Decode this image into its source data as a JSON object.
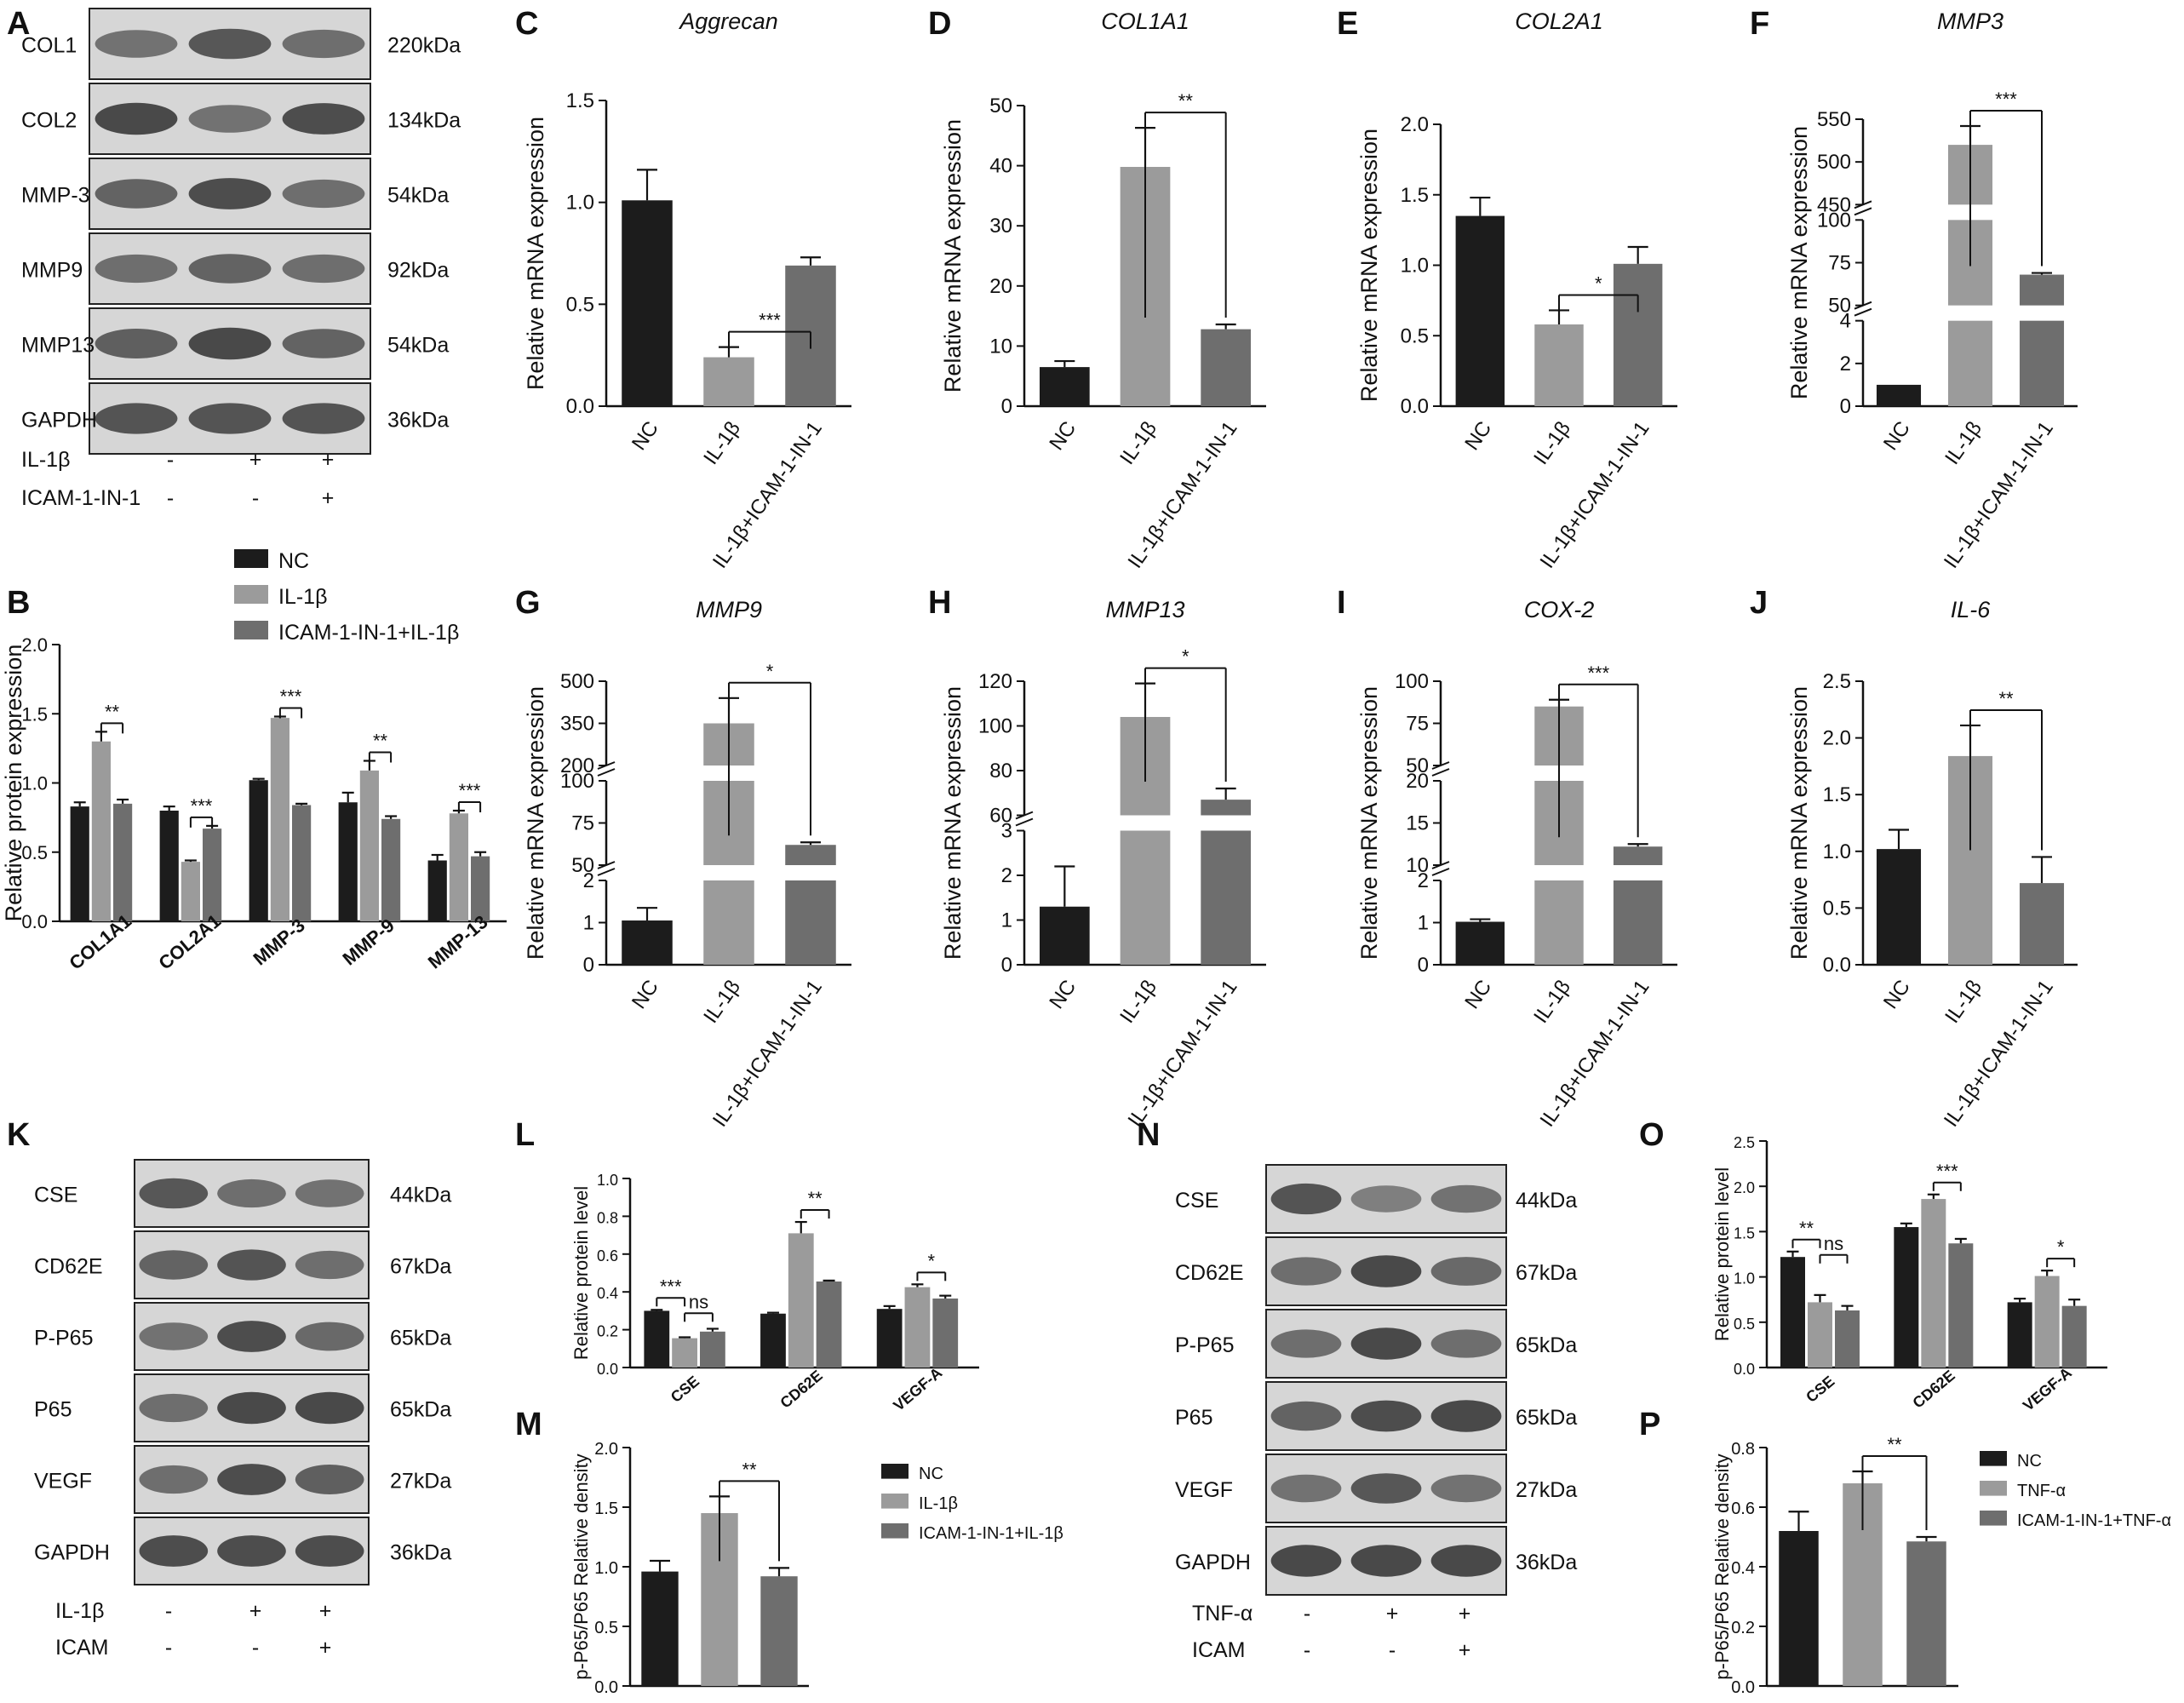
{
  "colors": {
    "nc": "#1c1c1c",
    "il": "#9b9b9b",
    "icam": "#6e6e6e",
    "blot_bg": "#d6d6d6",
    "band": "#3a3a3a"
  },
  "panel_letters": [
    "A",
    "B",
    "C",
    "D",
    "E",
    "F",
    "G",
    "H",
    "I",
    "J",
    "K",
    "L",
    "M",
    "N",
    "O",
    "P"
  ],
  "blots": [
    {
      "letter": "A",
      "rows": [
        {
          "name": "COL1",
          "kda": "220kDa",
          "intensity": [
            0.55,
            0.8,
            0.6
          ]
        },
        {
          "name": "COL2",
          "kda": "134kDa",
          "intensity": [
            0.95,
            0.55,
            0.9
          ]
        },
        {
          "name": "MMP-3",
          "kda": "54kDa",
          "intensity": [
            0.7,
            0.9,
            0.6
          ]
        },
        {
          "name": "MMP9",
          "kda": "92kDa",
          "intensity": [
            0.6,
            0.7,
            0.6
          ]
        },
        {
          "name": "MMP13",
          "kda": "54kDa",
          "intensity": [
            0.75,
            0.95,
            0.7
          ]
        },
        {
          "name": "GAPDH",
          "kda": "36kDa",
          "intensity": [
            0.85,
            0.85,
            0.85
          ]
        }
      ],
      "treatments": [
        {
          "label": "IL-1β",
          "marks": [
            "-",
            "+",
            "+"
          ]
        },
        {
          "label": "ICAM-1-IN-1",
          "marks": [
            "-",
            "-",
            "+"
          ]
        }
      ]
    },
    {
      "letter": "K",
      "rows": [
        {
          "name": "CSE",
          "kda": "44kDa",
          "intensity": [
            0.8,
            0.6,
            0.55
          ]
        },
        {
          "name": "CD62E",
          "kda": "67kDa",
          "intensity": [
            0.7,
            0.85,
            0.6
          ]
        },
        {
          "name": "P-P65",
          "kda": "65kDa",
          "intensity": [
            0.55,
            0.9,
            0.65
          ]
        },
        {
          "name": "P65",
          "kda": "65kDa",
          "intensity": [
            0.6,
            0.95,
            0.95
          ]
        },
        {
          "name": "VEGF",
          "kda": "27kDa",
          "intensity": [
            0.6,
            0.9,
            0.75
          ]
        },
        {
          "name": "GAPDH",
          "kda": "36kDa",
          "intensity": [
            0.9,
            0.9,
            0.9
          ]
        }
      ],
      "treatments": [
        {
          "label": "IL-1β",
          "marks": [
            "-",
            "+",
            "+"
          ]
        },
        {
          "label": "ICAM",
          "marks": [
            "-",
            "-",
            "+"
          ]
        }
      ]
    },
    {
      "letter": "N",
      "rows": [
        {
          "name": "CSE",
          "kda": "44kDa",
          "intensity": [
            0.85,
            0.45,
            0.55
          ]
        },
        {
          "name": "CD62E",
          "kda": "67kDa",
          "intensity": [
            0.6,
            0.95,
            0.65
          ]
        },
        {
          "name": "P-P65",
          "kda": "65kDa",
          "intensity": [
            0.6,
            0.95,
            0.6
          ]
        },
        {
          "name": "P65",
          "kda": "65kDa",
          "intensity": [
            0.7,
            0.9,
            0.95
          ]
        },
        {
          "name": "VEGF",
          "kda": "27kDa",
          "intensity": [
            0.55,
            0.8,
            0.55
          ]
        },
        {
          "name": "GAPDH",
          "kda": "36kDa",
          "intensity": [
            0.95,
            0.95,
            0.95
          ]
        }
      ],
      "treatments": [
        {
          "label": "TNF-α",
          "marks": [
            "-",
            "+",
            "+"
          ]
        },
        {
          "label": "ICAM",
          "marks": [
            "-",
            "-",
            "+"
          ]
        }
      ]
    }
  ],
  "chart_data": [
    {
      "id": "B",
      "type": "bar",
      "ylabel": "Relative protein expression",
      "ylim": [
        0,
        2.0
      ],
      "yticks": [
        "0.0",
        "0.5",
        "1.0",
        "1.5",
        "2.0"
      ],
      "categories": [
        "COL1A1",
        "COL2A1",
        "MMP-3",
        "MMP-9",
        "MMP-13"
      ],
      "series": [
        {
          "name": "NC",
          "values": [
            0.83,
            0.8,
            1.02,
            0.86,
            0.44
          ],
          "err": [
            0.03,
            0.03,
            0.01,
            0.07,
            0.04
          ]
        },
        {
          "name": "IL-1β",
          "values": [
            1.3,
            0.43,
            1.47,
            1.09,
            0.78
          ],
          "err": [
            0.07,
            0.01,
            0.01,
            0.07,
            0.02
          ]
        },
        {
          "name": "ICAM-1-IN-1+IL-1β",
          "values": [
            0.85,
            0.67,
            0.84,
            0.74,
            0.47
          ],
          "err": [
            0.03,
            0.02,
            0.01,
            0.02,
            0.03
          ]
        }
      ],
      "significance": [
        "**",
        "***",
        "***",
        "**",
        "***"
      ],
      "legend": [
        "NC",
        "IL-1β",
        "ICAM-1-IN-1+IL-1β"
      ]
    },
    {
      "id": "C",
      "type": "bar",
      "title": "Aggrecan",
      "ylabel": "Relative mRNA expression",
      "ylim": [
        0,
        1.5
      ],
      "yticks": [
        "0.0",
        "0.5",
        "1.0",
        "1.5"
      ],
      "categories": [
        "NC",
        "IL-1β",
        "IL-1β+ICAM-1-IN-1"
      ],
      "values": [
        1.01,
        0.24,
        0.69
      ],
      "err": [
        0.15,
        0.05,
        0.04
      ],
      "significance": "***"
    },
    {
      "id": "D",
      "type": "bar",
      "title": "COL1A1",
      "ylabel": "Relative mRNA expression",
      "ylim": [
        0,
        50
      ],
      "yticks": [
        "0",
        "10",
        "20",
        "30",
        "40",
        "50"
      ],
      "categories": [
        "NC",
        "IL-1β",
        "IL-1β+ICAM-1-IN-1"
      ],
      "values": [
        6.5,
        39.8,
        12.8
      ],
      "err": [
        1.0,
        6.5,
        0.8
      ],
      "significance": "**"
    },
    {
      "id": "E",
      "type": "bar",
      "title": "COL2A1",
      "ylabel": "Relative mRNA expression",
      "ylim": [
        0,
        2.0
      ],
      "yticks": [
        "0.0",
        "0.5",
        "1.0",
        "1.5",
        "2.0"
      ],
      "categories": [
        "NC",
        "IL-1β",
        "IL-1β+ICAM-1-IN-1"
      ],
      "values": [
        1.35,
        0.58,
        1.01
      ],
      "err": [
        0.13,
        0.1,
        0.12
      ],
      "significance": "*"
    },
    {
      "id": "F",
      "type": "bar",
      "title": "MMP3",
      "ylabel": "Relative mRNA expression",
      "broken": true,
      "segments": [
        {
          "lo": 0,
          "hi": 4,
          "ticks": [
            "0",
            "2",
            "4"
          ]
        },
        {
          "lo": 50,
          "hi": 100,
          "ticks": [
            "50",
            "75",
            "100"
          ]
        },
        {
          "lo": 450,
          "hi": 550,
          "ticks": [
            "450",
            "500",
            "550"
          ]
        }
      ],
      "categories": [
        "NC",
        "IL-1β",
        "IL-1β+ICAM-1-IN-1"
      ],
      "values": [
        1.0,
        520,
        68
      ],
      "err": [
        0,
        22,
        1
      ],
      "significance": "***"
    },
    {
      "id": "G",
      "type": "bar",
      "title": "MMP9",
      "ylabel": "Relative mRNA expression",
      "broken": true,
      "segments": [
        {
          "lo": 0,
          "hi": 2,
          "ticks": [
            "0",
            "1",
            "2"
          ]
        },
        {
          "lo": 50,
          "hi": 100,
          "ticks": [
            "50",
            "75",
            "100"
          ]
        },
        {
          "lo": 200,
          "hi": 500,
          "ticks": [
            "200",
            "350",
            "500"
          ]
        }
      ],
      "categories": [
        "NC",
        "IL-1β",
        "IL-1β+ICAM-1-IN-1"
      ],
      "values": [
        1.05,
        350,
        62
      ],
      "err": [
        0.3,
        90,
        1.5
      ],
      "significance": "*"
    },
    {
      "id": "H",
      "type": "bar",
      "title": "MMP13",
      "ylabel": "Relative mRNA expression",
      "broken": true,
      "segments": [
        {
          "lo": 0,
          "hi": 3,
          "ticks": [
            "0",
            "1",
            "2",
            "3"
          ]
        },
        {
          "lo": 60,
          "hi": 120,
          "ticks": [
            "60",
            "80",
            "100",
            "120"
          ]
        }
      ],
      "categories": [
        "NC",
        "IL-1β",
        "IL-1β+ICAM-1-IN-1"
      ],
      "values": [
        1.3,
        104,
        67
      ],
      "err": [
        0.9,
        15,
        5
      ],
      "significance": "*"
    },
    {
      "id": "I",
      "type": "bar",
      "title": "COX-2",
      "ylabel": "Relative mRNA expression",
      "broken": true,
      "segments": [
        {
          "lo": 0,
          "hi": 2,
          "ticks": [
            "0",
            "1",
            "2"
          ]
        },
        {
          "lo": 10,
          "hi": 20,
          "ticks": [
            "10",
            "15",
            "20"
          ]
        },
        {
          "lo": 50,
          "hi": 100,
          "ticks": [
            "50",
            "75",
            "100"
          ]
        }
      ],
      "categories": [
        "NC",
        "IL-1β",
        "IL-1β+ICAM-1-IN-1"
      ],
      "values": [
        1.02,
        85,
        12.2
      ],
      "err": [
        0.06,
        4,
        0.3
      ],
      "significance": "***"
    },
    {
      "id": "J",
      "type": "bar",
      "title": "IL-6",
      "ylabel": "Relative mRNA expression",
      "ylim": [
        0,
        2.5
      ],
      "yticks": [
        "0.0",
        "0.5",
        "1.0",
        "1.5",
        "2.0",
        "2.5"
      ],
      "categories": [
        "NC",
        "IL-1β",
        "IL-1β+ICAM-1-IN-1"
      ],
      "values": [
        1.02,
        1.84,
        0.72
      ],
      "err": [
        0.17,
        0.27,
        0.23
      ],
      "significance": "**"
    },
    {
      "id": "L",
      "type": "bar",
      "ylabel": "Relative protein level",
      "ylim": [
        0,
        1.0
      ],
      "yticks": [
        "0.0",
        "0.2",
        "0.4",
        "0.6",
        "0.8",
        "1.0"
      ],
      "categories": [
        "CSE",
        "CD62E",
        "VEGF-A"
      ],
      "series": [
        {
          "name": "NC",
          "values": [
            0.3,
            0.285,
            0.31
          ],
          "err": [
            0.005,
            0.005,
            0.015
          ]
        },
        {
          "name": "IL-1β",
          "values": [
            0.155,
            0.71,
            0.425
          ],
          "err": [
            0.005,
            0.06,
            0.015
          ]
        },
        {
          "name": "ICAM-1-IN-1+IL-1β",
          "values": [
            0.19,
            0.455,
            0.365
          ],
          "err": [
            0.015,
            0.005,
            0.015
          ]
        }
      ],
      "significance": [
        {
          "label": "***",
          "from": 0,
          "to": 1
        },
        {
          "label": "ns",
          "from": 1,
          "to": 2
        },
        {
          "label": "**",
          "from": 1,
          "to": 2
        },
        {
          "label": "*",
          "from": 1,
          "to": 2
        }
      ]
    },
    {
      "id": "M",
      "type": "bar",
      "ylabel": "p-P65/P65 Relative density",
      "ylim": [
        0,
        2.0
      ],
      "yticks": [
        "0.0",
        "0.5",
        "1.0",
        "1.5",
        "2.0"
      ],
      "categories": [
        "",
        "",
        ""
      ],
      "values": [
        0.96,
        1.45,
        0.92
      ],
      "err": [
        0.09,
        0.14,
        0.07
      ],
      "significance": "**",
      "legend": [
        "NC",
        "IL-1β",
        "ICAM-1-IN-1+IL-1β"
      ]
    },
    {
      "id": "O",
      "type": "bar",
      "ylabel": "Relative protein level",
      "ylim": [
        0,
        2.5
      ],
      "yticks": [
        "0.0",
        "0.5",
        "1.0",
        "1.5",
        "2.0",
        "2.5"
      ],
      "categories": [
        "CSE",
        "CD62E",
        "VEGF-A"
      ],
      "series": [
        {
          "name": "NC",
          "values": [
            1.22,
            1.55,
            0.72
          ],
          "err": [
            0.06,
            0.04,
            0.04
          ]
        },
        {
          "name": "TNF-α",
          "values": [
            0.72,
            1.86,
            1.01
          ],
          "err": [
            0.08,
            0.05,
            0.06
          ]
        },
        {
          "name": "ICAM-1-IN-1+TNF-α",
          "values": [
            0.63,
            1.37,
            0.68
          ],
          "err": [
            0.05,
            0.05,
            0.07
          ]
        }
      ],
      "significance": [
        {
          "label": "**",
          "from": 0,
          "to": 1
        },
        {
          "label": "ns",
          "from": 1,
          "to": 2
        },
        {
          "label": "***",
          "from": 1,
          "to": 2
        },
        {
          "label": "*",
          "from": 1,
          "to": 2
        }
      ]
    },
    {
      "id": "P",
      "type": "bar",
      "ylabel": "p-P65/P65 Relative density",
      "ylim": [
        0,
        0.8
      ],
      "yticks": [
        "0.0",
        "0.2",
        "0.4",
        "0.6",
        "0.8"
      ],
      "categories": [
        "",
        "",
        ""
      ],
      "values": [
        0.52,
        0.68,
        0.485
      ],
      "err": [
        0.065,
        0.04,
        0.015
      ],
      "significance": "**",
      "legend": [
        "NC",
        "TNF-α",
        "ICAM-1-IN-1+TNF-α"
      ]
    }
  ]
}
